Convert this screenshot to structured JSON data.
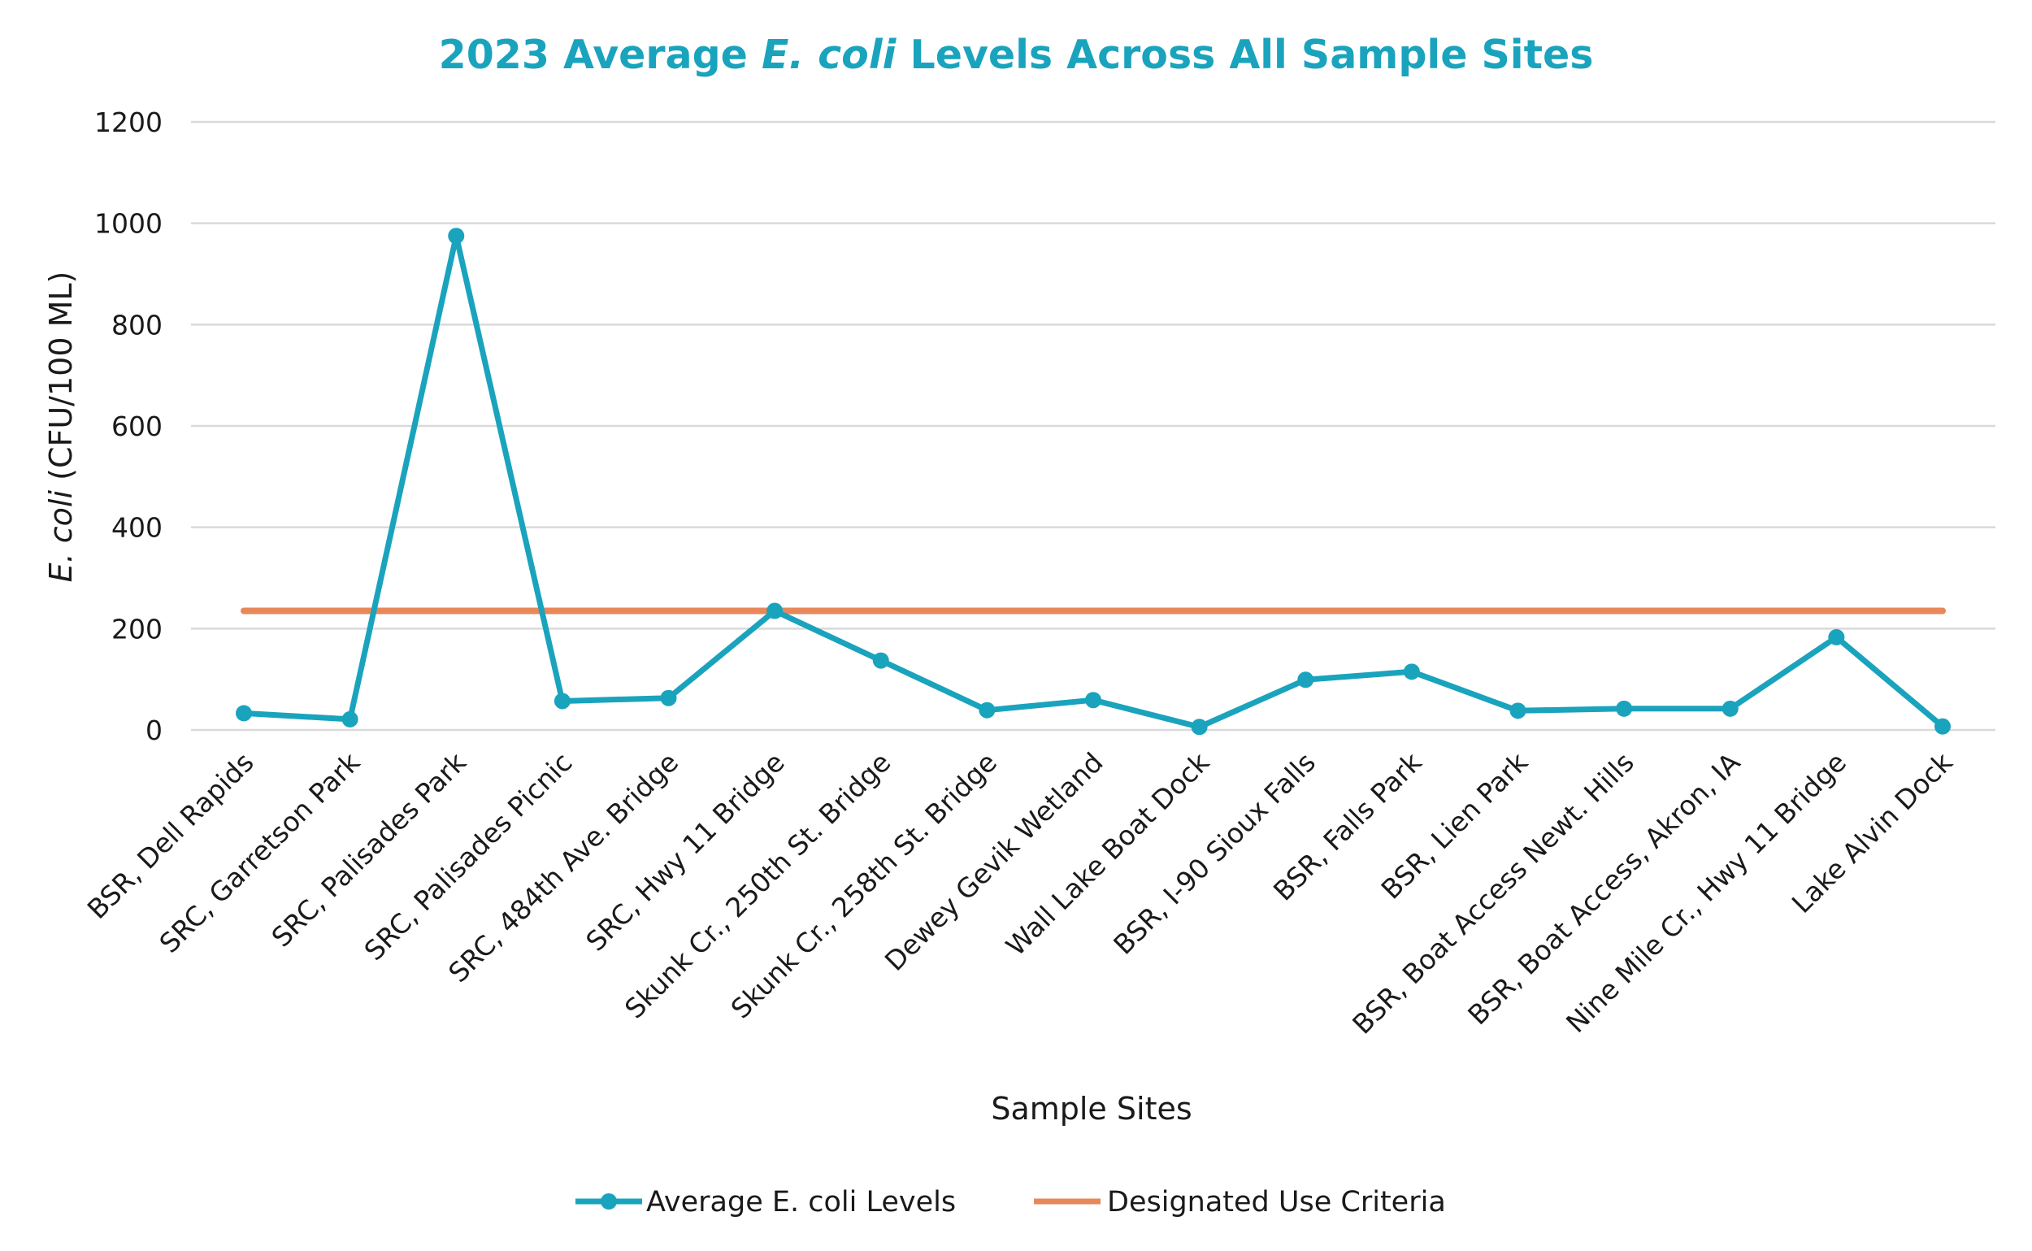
{
  "chart_data": {
    "type": "line",
    "title": {
      "before": "2023 Average ",
      "italic": "E. coli",
      "after": " Levels Across All Sample Sites"
    },
    "xlabel": "Sample Sites",
    "ylabel": {
      "italic": "E. coli",
      "rest": " (CFU/100 ML)"
    },
    "ylim": [
      0,
      1200
    ],
    "yticks": [
      0,
      200,
      400,
      600,
      800,
      1000,
      1200
    ],
    "grid": true,
    "legend_position": "bottom",
    "categories": [
      "BSR, Dell Rapids",
      "SRC, Garretson Park",
      "SRC, Palisades Park",
      "SRC, Palisades Picnic",
      "SRC, 484th Ave. Bridge",
      "SRC, Hwy 11 Bridge",
      "Skunk Cr., 250th St. Bridge",
      "Skunk Cr., 258th St. Bridge",
      "Dewey Gevik Wetland",
      "Wall Lake Boat Dock",
      "BSR, I-90 Sioux Falls",
      "BSR, Falls Park",
      "BSR, Lien Park",
      "BSR, Boat Access Newt. Hills",
      "BSR, Boat Access, Akron, IA",
      "Nine Mile Cr., Hwy 11 Bridge",
      "Lake Alvin Dock"
    ],
    "series": [
      {
        "name": "Average E. coli Levels",
        "color": "#1aa3bd",
        "marker": "circle",
        "values": [
          33,
          21,
          975,
          57,
          63,
          235,
          137,
          39,
          59,
          6,
          99,
          115,
          38,
          42,
          42,
          183,
          7
        ]
      },
      {
        "name": "Designated Use Criteria",
        "color": "#e8875a",
        "marker": "none",
        "values": [
          235,
          235,
          235,
          235,
          235,
          235,
          235,
          235,
          235,
          235,
          235,
          235,
          235,
          235,
          235,
          235,
          235
        ]
      }
    ]
  }
}
